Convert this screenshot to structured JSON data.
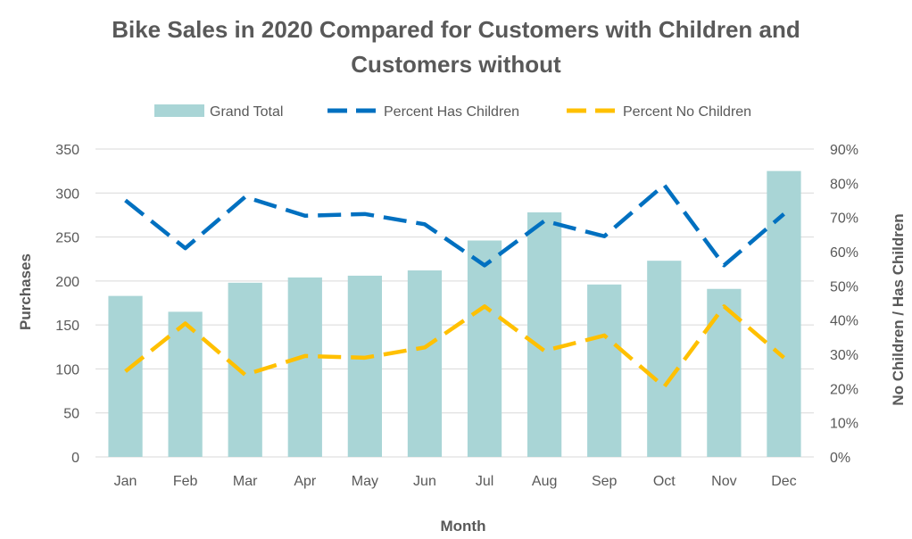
{
  "chart_data": {
    "type": "bar",
    "title": "Bike Sales in 2020 Compared for Customers with Children and Customers without",
    "title_lines": [
      "Bike Sales in 2020 Compared for Customers with Children and",
      "Customers without"
    ],
    "xlabel": "Month",
    "ylabel": "Purchases",
    "y2label": "No Children / Has Children",
    "categories": [
      "Jan",
      "Feb",
      "Mar",
      "Apr",
      "May",
      "Jun",
      "Jul",
      "Aug",
      "Sep",
      "Oct",
      "Nov",
      "Dec"
    ],
    "ylim": [
      0,
      350
    ],
    "yticks": [
      "0",
      "50",
      "100",
      "150",
      "200",
      "250",
      "300",
      "350"
    ],
    "y2lim": [
      0,
      90
    ],
    "y2ticks": [
      "0%",
      "10%",
      "20%",
      "30%",
      "40%",
      "50%",
      "60%",
      "70%",
      "80%",
      "90%"
    ],
    "grid": true,
    "legend_position": "top",
    "series": [
      {
        "name": "Grand Total",
        "type": "bar",
        "axis": "left",
        "color": "#a9d5d6",
        "values": [
          183,
          165,
          198,
          204,
          206,
          212,
          246,
          278,
          196,
          223,
          191,
          325
        ]
      },
      {
        "name": "Percent Has Children",
        "type": "line",
        "axis": "right",
        "color": "#0070c0",
        "dash": true,
        "values": [
          75,
          61,
          76,
          70.5,
          71,
          68,
          56,
          69,
          64.5,
          79.5,
          56,
          71
        ]
      },
      {
        "name": "Percent No Children",
        "type": "line",
        "axis": "right",
        "color": "#ffc000",
        "dash": true,
        "values": [
          25,
          39,
          24,
          29.5,
          29,
          32,
          44,
          31,
          35.5,
          20.5,
          44,
          29
        ]
      }
    ]
  }
}
